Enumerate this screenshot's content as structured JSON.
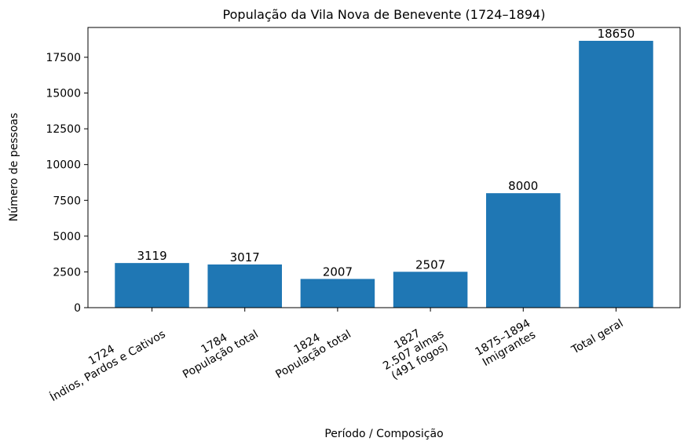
{
  "chart_data": {
    "type": "bar",
    "title": "População da Vila Nova de Benevente (1724–1894)",
    "xlabel": "Período / Composição",
    "ylabel": "Número de pessoas",
    "categories": [
      [
        "1724",
        "Índios, Pardos e Cativos"
      ],
      [
        "1784",
        "População total"
      ],
      [
        "1824",
        "População total"
      ],
      [
        "1827",
        "2.507 almas",
        "(491 fogos)"
      ],
      [
        "1875–1894",
        "Imigrantes"
      ],
      [
        "Total geral"
      ]
    ],
    "values": [
      3119,
      3017,
      2007,
      2507,
      8000,
      18650
    ],
    "color": "#1f77b4",
    "ylim": [
      0,
      19582.5
    ],
    "yticks": [
      0,
      2500,
      5000,
      7500,
      10000,
      12500,
      15000,
      17500
    ],
    "grid": false
  }
}
